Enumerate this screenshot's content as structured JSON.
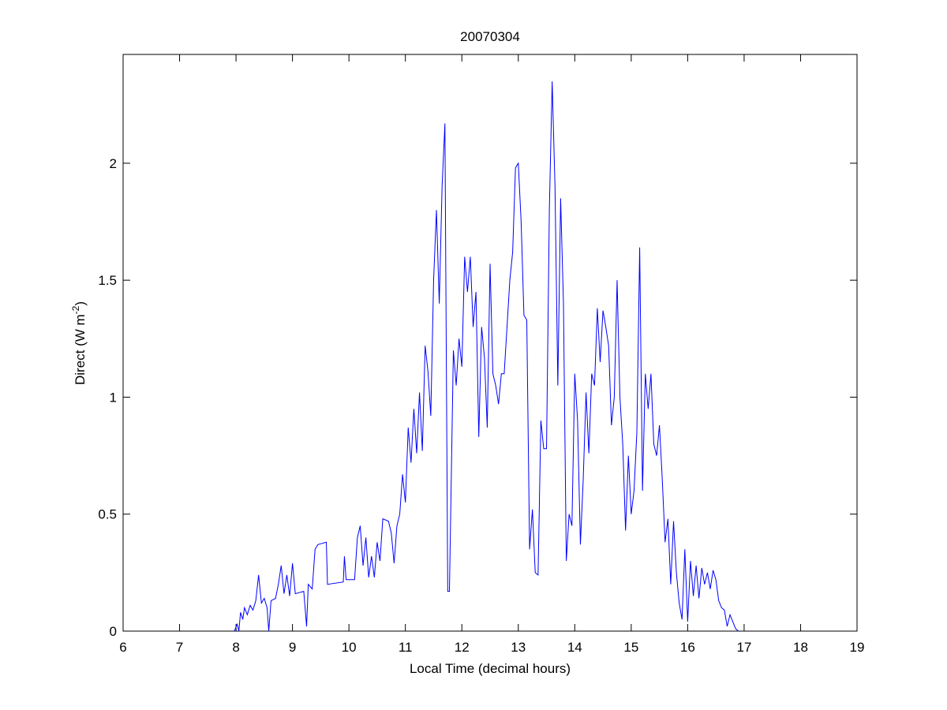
{
  "chart_data": {
    "type": "line",
    "title": "20070304",
    "xlabel": "Local Time (decimal hours)",
    "ylabel": {
      "text": "Direct (W m",
      "sup": "-2",
      "end": ")"
    },
    "xlim": [
      6,
      19
    ],
    "xticks": [
      6,
      7,
      8,
      9,
      10,
      11,
      12,
      13,
      14,
      15,
      16,
      17,
      18,
      19
    ],
    "ylim": [
      0,
      2.465
    ],
    "yticks": [
      0,
      0.5,
      1,
      1.5,
      2
    ],
    "box": true,
    "series": [
      {
        "name": "Direct",
        "color": "#0000ff",
        "x": [
          7.97,
          8.02,
          8.05,
          8.08,
          8.12,
          8.15,
          8.2,
          8.25,
          8.3,
          8.35,
          8.4,
          8.45,
          8.5,
          8.55,
          8.58,
          8.62,
          8.7,
          8.75,
          8.8,
          8.85,
          8.9,
          8.95,
          9.0,
          9.05,
          9.2,
          9.25,
          9.28,
          9.35,
          9.4,
          9.45,
          9.6,
          9.62,
          9.9,
          9.92,
          9.95,
          10.1,
          10.15,
          10.2,
          10.25,
          10.3,
          10.35,
          10.4,
          10.45,
          10.5,
          10.55,
          10.6,
          10.7,
          10.75,
          10.8,
          10.85,
          10.9,
          10.95,
          11.0,
          11.05,
          11.1,
          11.15,
          11.2,
          11.25,
          11.3,
          11.35,
          11.4,
          11.45,
          11.5,
          11.55,
          11.6,
          11.65,
          11.7,
          11.75,
          11.78,
          11.85,
          11.9,
          11.95,
          12.0,
          12.05,
          12.1,
          12.15,
          12.2,
          12.25,
          12.3,
          12.35,
          12.4,
          12.45,
          12.5,
          12.55,
          12.6,
          12.65,
          12.7,
          12.75,
          12.8,
          12.85,
          12.9,
          12.95,
          13.0,
          13.05,
          13.1,
          13.15,
          13.2,
          13.25,
          13.3,
          13.35,
          13.4,
          13.45,
          13.5,
          13.55,
          13.6,
          13.65,
          13.7,
          13.75,
          13.8,
          13.85,
          13.9,
          13.95,
          14.0,
          14.05,
          14.1,
          14.15,
          14.2,
          14.25,
          14.3,
          14.35,
          14.4,
          14.45,
          14.5,
          14.55,
          14.6,
          14.65,
          14.7,
          14.75,
          14.8,
          14.85,
          14.9,
          14.95,
          15.0,
          15.05,
          15.1,
          15.15,
          15.2,
          15.25,
          15.3,
          15.35,
          15.4,
          15.45,
          15.5,
          15.55,
          15.6,
          15.65,
          15.7,
          15.75,
          15.8,
          15.85,
          15.9,
          15.95,
          16.0,
          16.05,
          16.1,
          16.15,
          16.2,
          16.25,
          16.3,
          16.35,
          16.4,
          16.45,
          16.5,
          16.55,
          16.6,
          16.65,
          16.7,
          16.75,
          16.8,
          16.85,
          16.9
        ],
        "values": [
          0,
          0.03,
          0,
          0.08,
          0.05,
          0.1,
          0.07,
          0.11,
          0.09,
          0.13,
          0.24,
          0.12,
          0.14,
          0.1,
          0,
          0.13,
          0.14,
          0.2,
          0.28,
          0.16,
          0.24,
          0.15,
          0.29,
          0.16,
          0.17,
          0.02,
          0.2,
          0.18,
          0.35,
          0.37,
          0.38,
          0.2,
          0.21,
          0.32,
          0.22,
          0.22,
          0.4,
          0.45,
          0.28,
          0.4,
          0.23,
          0.32,
          0.23,
          0.38,
          0.3,
          0.48,
          0.47,
          0.42,
          0.29,
          0.45,
          0.5,
          0.67,
          0.55,
          0.87,
          0.72,
          0.95,
          0.76,
          1.02,
          0.77,
          1.22,
          1.11,
          0.92,
          1.5,
          1.8,
          1.4,
          1.9,
          2.17,
          0.17,
          0.17,
          1.2,
          1.05,
          1.25,
          1.13,
          1.6,
          1.45,
          1.6,
          1.3,
          1.45,
          0.83,
          1.3,
          1.17,
          0.87,
          1.57,
          1.1,
          1.05,
          0.97,
          1.1,
          1.1,
          1.3,
          1.5,
          1.62,
          1.98,
          2.0,
          1.75,
          1.35,
          1.33,
          0.35,
          0.52,
          0.25,
          0.24,
          0.9,
          0.78,
          0.78,
          1.8,
          2.35,
          1.9,
          1.05,
          1.85,
          1.4,
          0.3,
          0.5,
          0.45,
          1.1,
          0.9,
          0.37,
          0.65,
          1.02,
          0.76,
          1.1,
          1.05,
          1.38,
          1.15,
          1.37,
          1.3,
          1.22,
          0.88,
          1.0,
          1.5,
          1.0,
          0.8,
          0.43,
          0.75,
          0.5,
          0.6,
          0.85,
          1.64,
          0.6,
          1.1,
          0.95,
          1.1,
          0.8,
          0.75,
          0.88,
          0.65,
          0.38,
          0.48,
          0.2,
          0.47,
          0.25,
          0.12,
          0.05,
          0.35,
          0.04,
          0.3,
          0.15,
          0.28,
          0.14,
          0.27,
          0.2,
          0.25,
          0.18,
          0.26,
          0.22,
          0.13,
          0.1,
          0.09,
          0.02,
          0.07,
          0.04,
          0.01,
          0
        ]
      }
    ]
  }
}
